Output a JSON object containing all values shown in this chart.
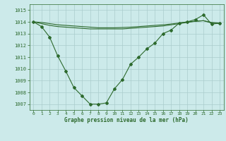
{
  "line1": {
    "x": [
      0,
      1,
      2,
      3,
      4,
      5,
      6,
      7,
      8,
      9,
      10,
      11,
      12,
      13,
      14,
      15,
      16,
      17,
      18,
      19,
      20,
      21,
      22,
      23
    ],
    "y": [
      1014.0,
      1013.6,
      1012.7,
      1011.1,
      1009.8,
      1008.4,
      1007.7,
      1007.0,
      1007.0,
      1007.1,
      1008.3,
      1009.1,
      1010.4,
      1011.0,
      1011.7,
      1012.2,
      1013.0,
      1013.3,
      1013.9,
      1014.0,
      1014.2,
      1014.6,
      1013.8,
      1013.9
    ]
  },
  "line2": {
    "x": [
      0,
      1,
      2,
      3,
      4,
      5,
      6,
      7,
      8,
      9,
      10,
      11,
      12,
      13,
      14,
      15,
      16,
      17,
      18,
      19,
      20,
      21,
      22,
      23
    ],
    "y": [
      1014.0,
      1013.85,
      1013.7,
      1013.6,
      1013.55,
      1013.5,
      1013.45,
      1013.4,
      1013.4,
      1013.4,
      1013.4,
      1013.4,
      1013.45,
      1013.5,
      1013.55,
      1013.6,
      1013.65,
      1013.75,
      1013.85,
      1013.95,
      1014.05,
      1014.1,
      1013.9,
      1013.85
    ]
  },
  "line3": {
    "x": [
      0,
      1,
      2,
      3,
      4,
      5,
      6,
      7,
      8,
      9,
      10,
      11,
      12,
      13,
      14,
      15,
      16,
      17,
      18,
      19,
      20,
      21,
      22,
      23
    ],
    "y": [
      1014.0,
      1013.95,
      1013.85,
      1013.75,
      1013.7,
      1013.65,
      1013.6,
      1013.55,
      1013.5,
      1013.5,
      1013.5,
      1013.52,
      1013.55,
      1013.6,
      1013.65,
      1013.7,
      1013.75,
      1013.82,
      1013.9,
      1014.0,
      1014.05,
      1014.1,
      1013.95,
      1013.9
    ]
  },
  "line_color": "#2d6a2d",
  "bg_color": "#cceaea",
  "grid_color": "#aacccc",
  "xlabel": "Graphe pression niveau de la mer (hPa)",
  "ylim": [
    1006.5,
    1015.5
  ],
  "xlim": [
    -0.5,
    23.5
  ],
  "yticks": [
    1007,
    1008,
    1009,
    1010,
    1011,
    1012,
    1013,
    1014,
    1015
  ],
  "xticks": [
    0,
    1,
    2,
    3,
    4,
    5,
    6,
    7,
    8,
    9,
    10,
    11,
    12,
    13,
    14,
    15,
    16,
    17,
    18,
    19,
    20,
    21,
    22,
    23
  ]
}
